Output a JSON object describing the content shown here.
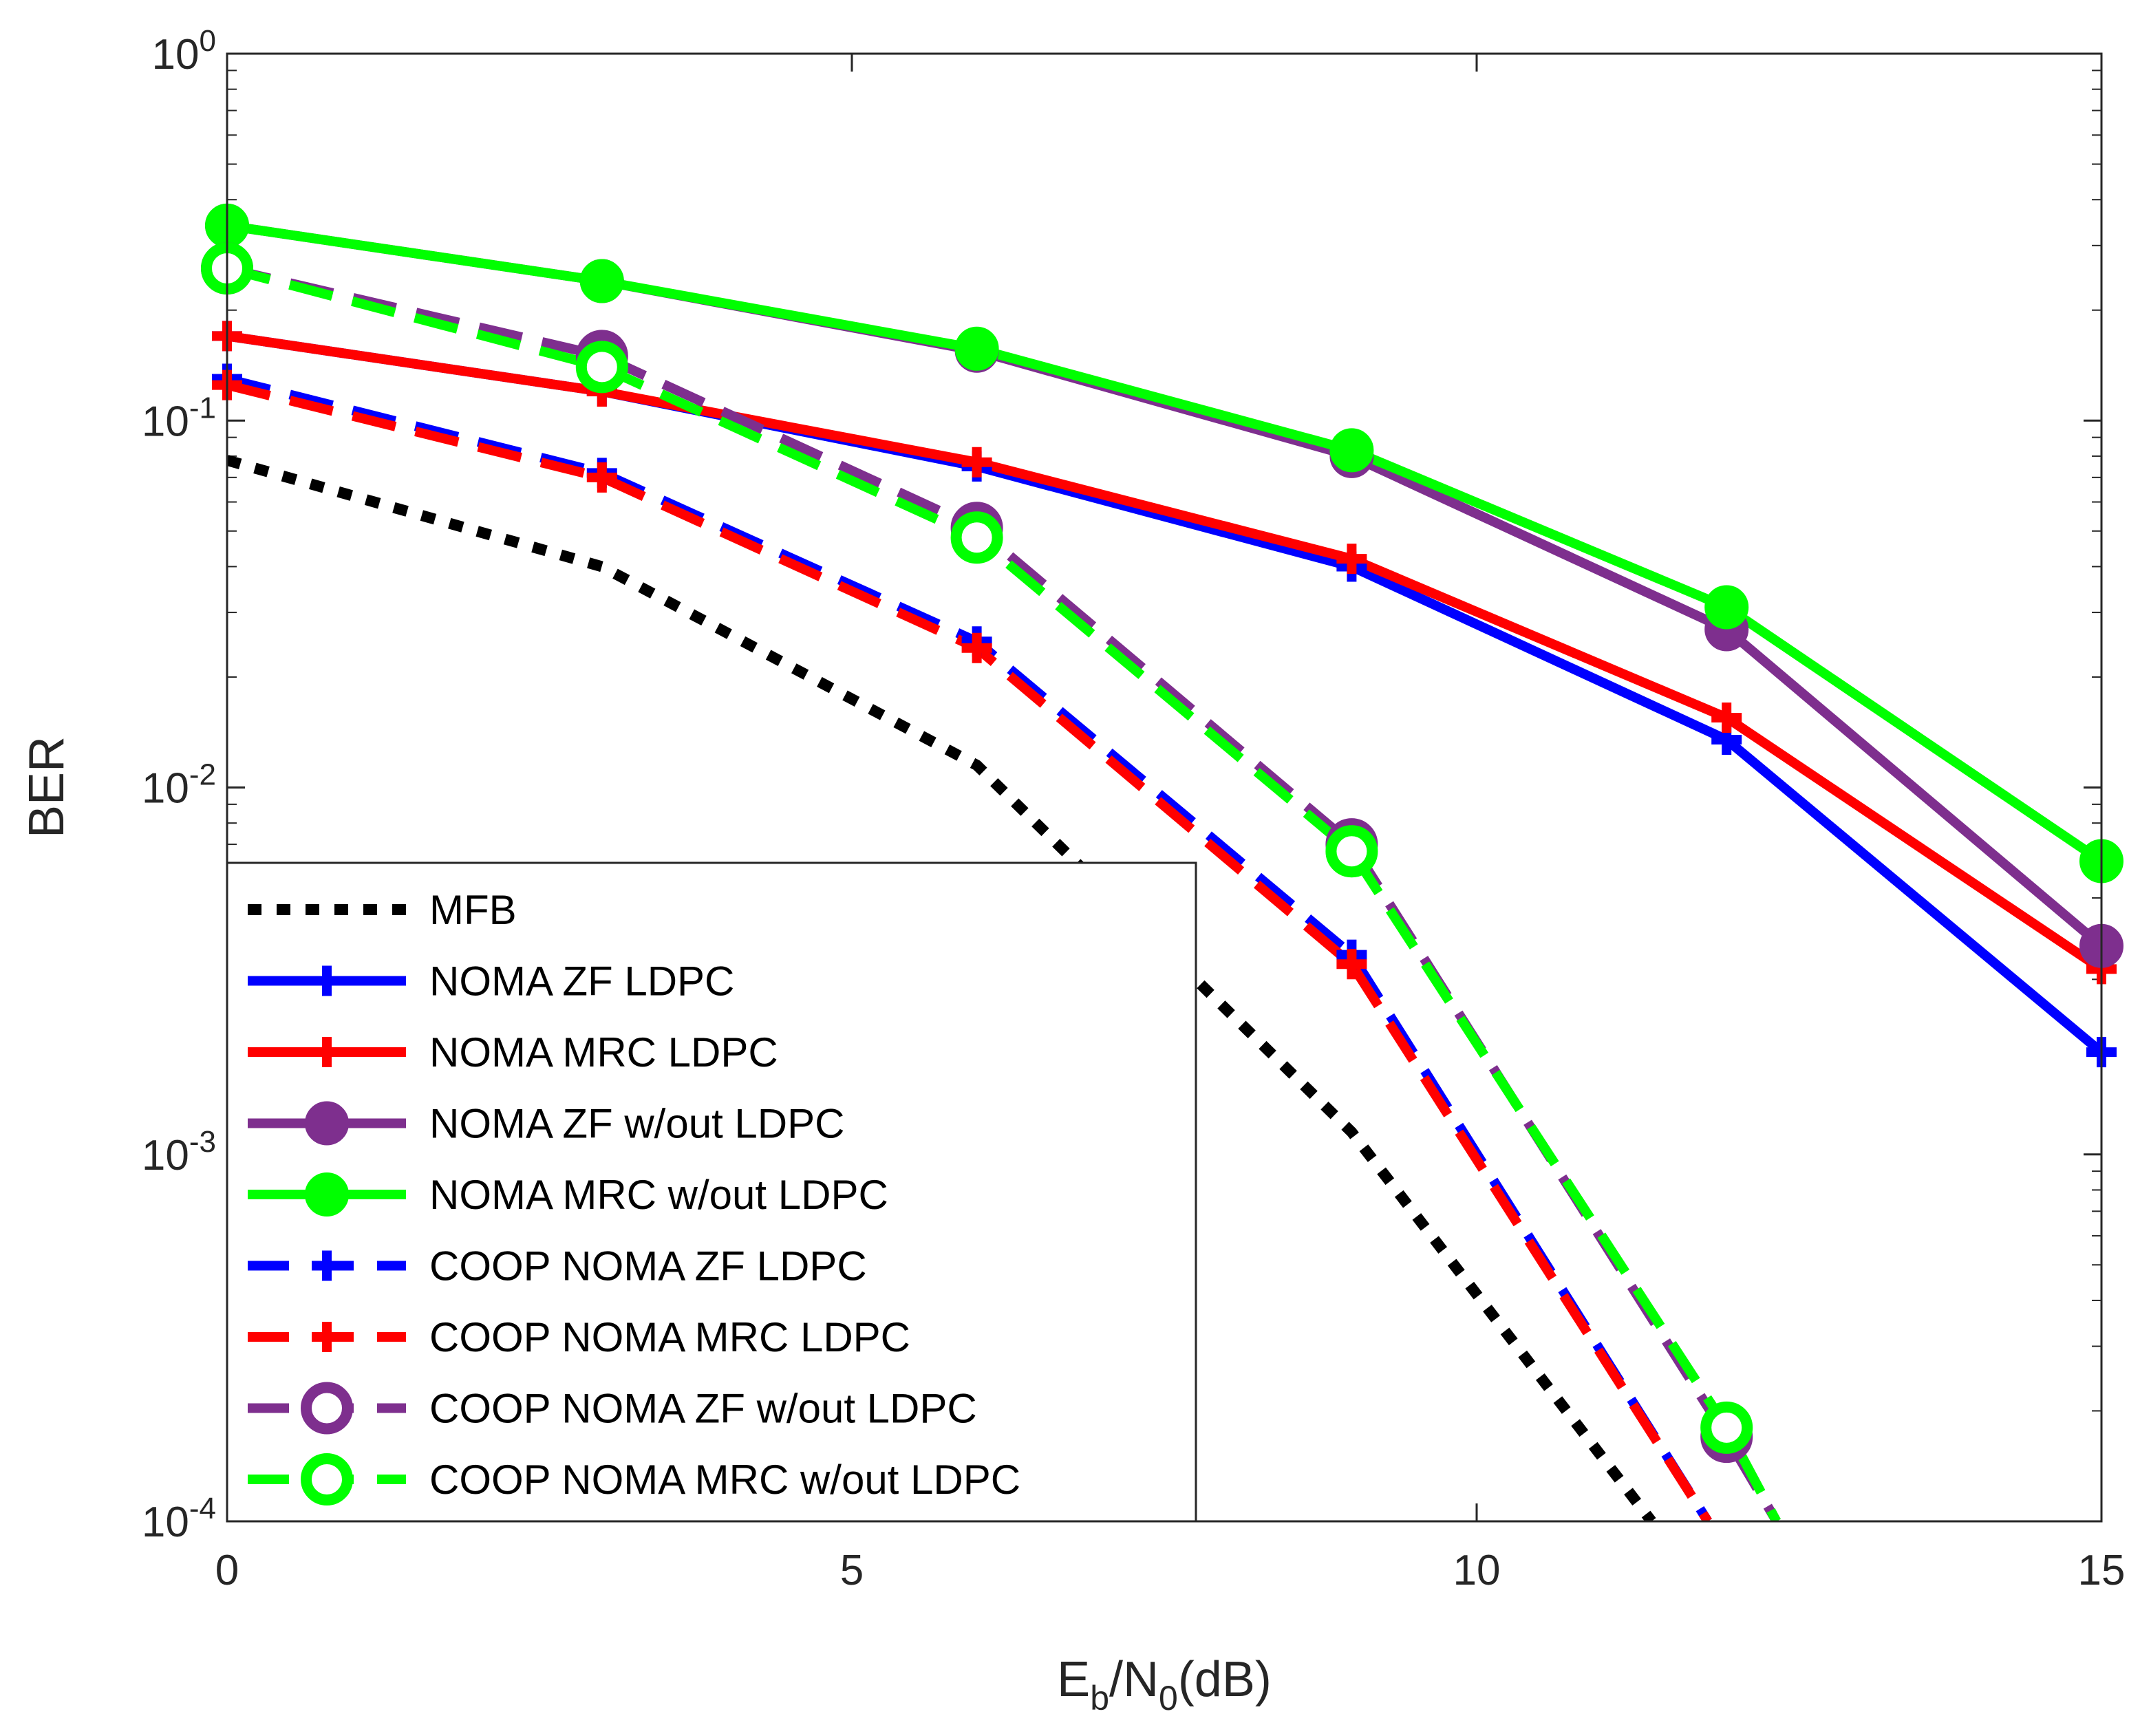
{
  "chart_data": {
    "type": "line",
    "yscale": "log",
    "xlim": [
      0,
      15
    ],
    "ylim": [
      0.0001,
      1
    ],
    "x_ticks": [
      "0",
      "5",
      "10",
      "15"
    ],
    "y_ticks": [
      {
        "base": "10",
        "exp": "0"
      },
      {
        "base": "10",
        "exp": "-1"
      },
      {
        "base": "10",
        "exp": "-2"
      },
      {
        "base": "10",
        "exp": "-3"
      },
      {
        "base": "10",
        "exp": "-4"
      }
    ],
    "xlabel": {
      "main": "E",
      "sub1": "b",
      "mid": "/N",
      "sub2": "0",
      "tail": "(dB)"
    },
    "ylabel": "BER",
    "legend_position": "bottom-left",
    "series": [
      {
        "name": "MFB",
        "color": "#000000",
        "style": "dotted",
        "marker": "none",
        "x": [
          0,
          3,
          6,
          9,
          11.4
        ],
        "y": [
          0.078,
          0.04,
          0.0115,
          0.00115,
          0.0001
        ]
      },
      {
        "name": "NOMA ZF LDPC",
        "color": "#0000ff",
        "style": "solid",
        "marker": "plus",
        "x": [
          0,
          3,
          6,
          9,
          12,
          15
        ],
        "y": [
          0.17,
          0.12,
          0.075,
          0.04,
          0.0135,
          0.0019
        ]
      },
      {
        "name": "NOMA MRC LDPC",
        "color": "#ff0000",
        "style": "solid",
        "marker": "plus",
        "x": [
          0,
          3,
          6,
          9,
          12,
          15
        ],
        "y": [
          0.17,
          0.12,
          0.077,
          0.042,
          0.0155,
          0.0032
        ]
      },
      {
        "name": "NOMA ZF w/out LDPC",
        "color": "#7e2f8e",
        "style": "solid",
        "marker": "circle",
        "x": [
          0,
          3,
          6,
          9,
          12,
          15
        ],
        "y": [
          0.34,
          0.24,
          0.155,
          0.08,
          0.027,
          0.0037
        ]
      },
      {
        "name": "NOMA MRC w/out LDPC",
        "color": "#00ff00",
        "style": "solid",
        "marker": "circle",
        "x": [
          0,
          3,
          6,
          9,
          12,
          15
        ],
        "y": [
          0.34,
          0.24,
          0.157,
          0.083,
          0.031,
          0.0063
        ]
      },
      {
        "name": "COOP NOMA ZF LDPC",
        "color": "#0000ff",
        "style": "dashed",
        "marker": "plus",
        "x": [
          0,
          3,
          6,
          9,
          11.85
        ],
        "y": [
          0.13,
          0.072,
          0.025,
          0.0035,
          0.0001
        ]
      },
      {
        "name": "COOP NOMA MRC LDPC",
        "color": "#ff0000",
        "style": "dashed",
        "marker": "plus",
        "x": [
          0,
          3,
          6,
          9,
          11.85
        ],
        "y": [
          0.125,
          0.07,
          0.024,
          0.0033,
          0.0001
        ]
      },
      {
        "name": "COOP NOMA ZF w/out LDPC",
        "color": "#7e2f8e",
        "style": "dashed",
        "marker": "circle-open",
        "x": [
          0,
          3,
          6,
          9,
          12,
          12.4
        ],
        "y": [
          0.26,
          0.15,
          0.051,
          0.007,
          0.00017,
          0.0001
        ]
      },
      {
        "name": "COOP NOMA MRC w/out LDPC",
        "color": "#00ff00",
        "style": "dashed",
        "marker": "circle-open",
        "x": [
          0,
          3,
          6,
          9,
          12,
          12.4
        ],
        "y": [
          0.26,
          0.14,
          0.048,
          0.0067,
          0.00018,
          0.0001
        ]
      }
    ]
  }
}
